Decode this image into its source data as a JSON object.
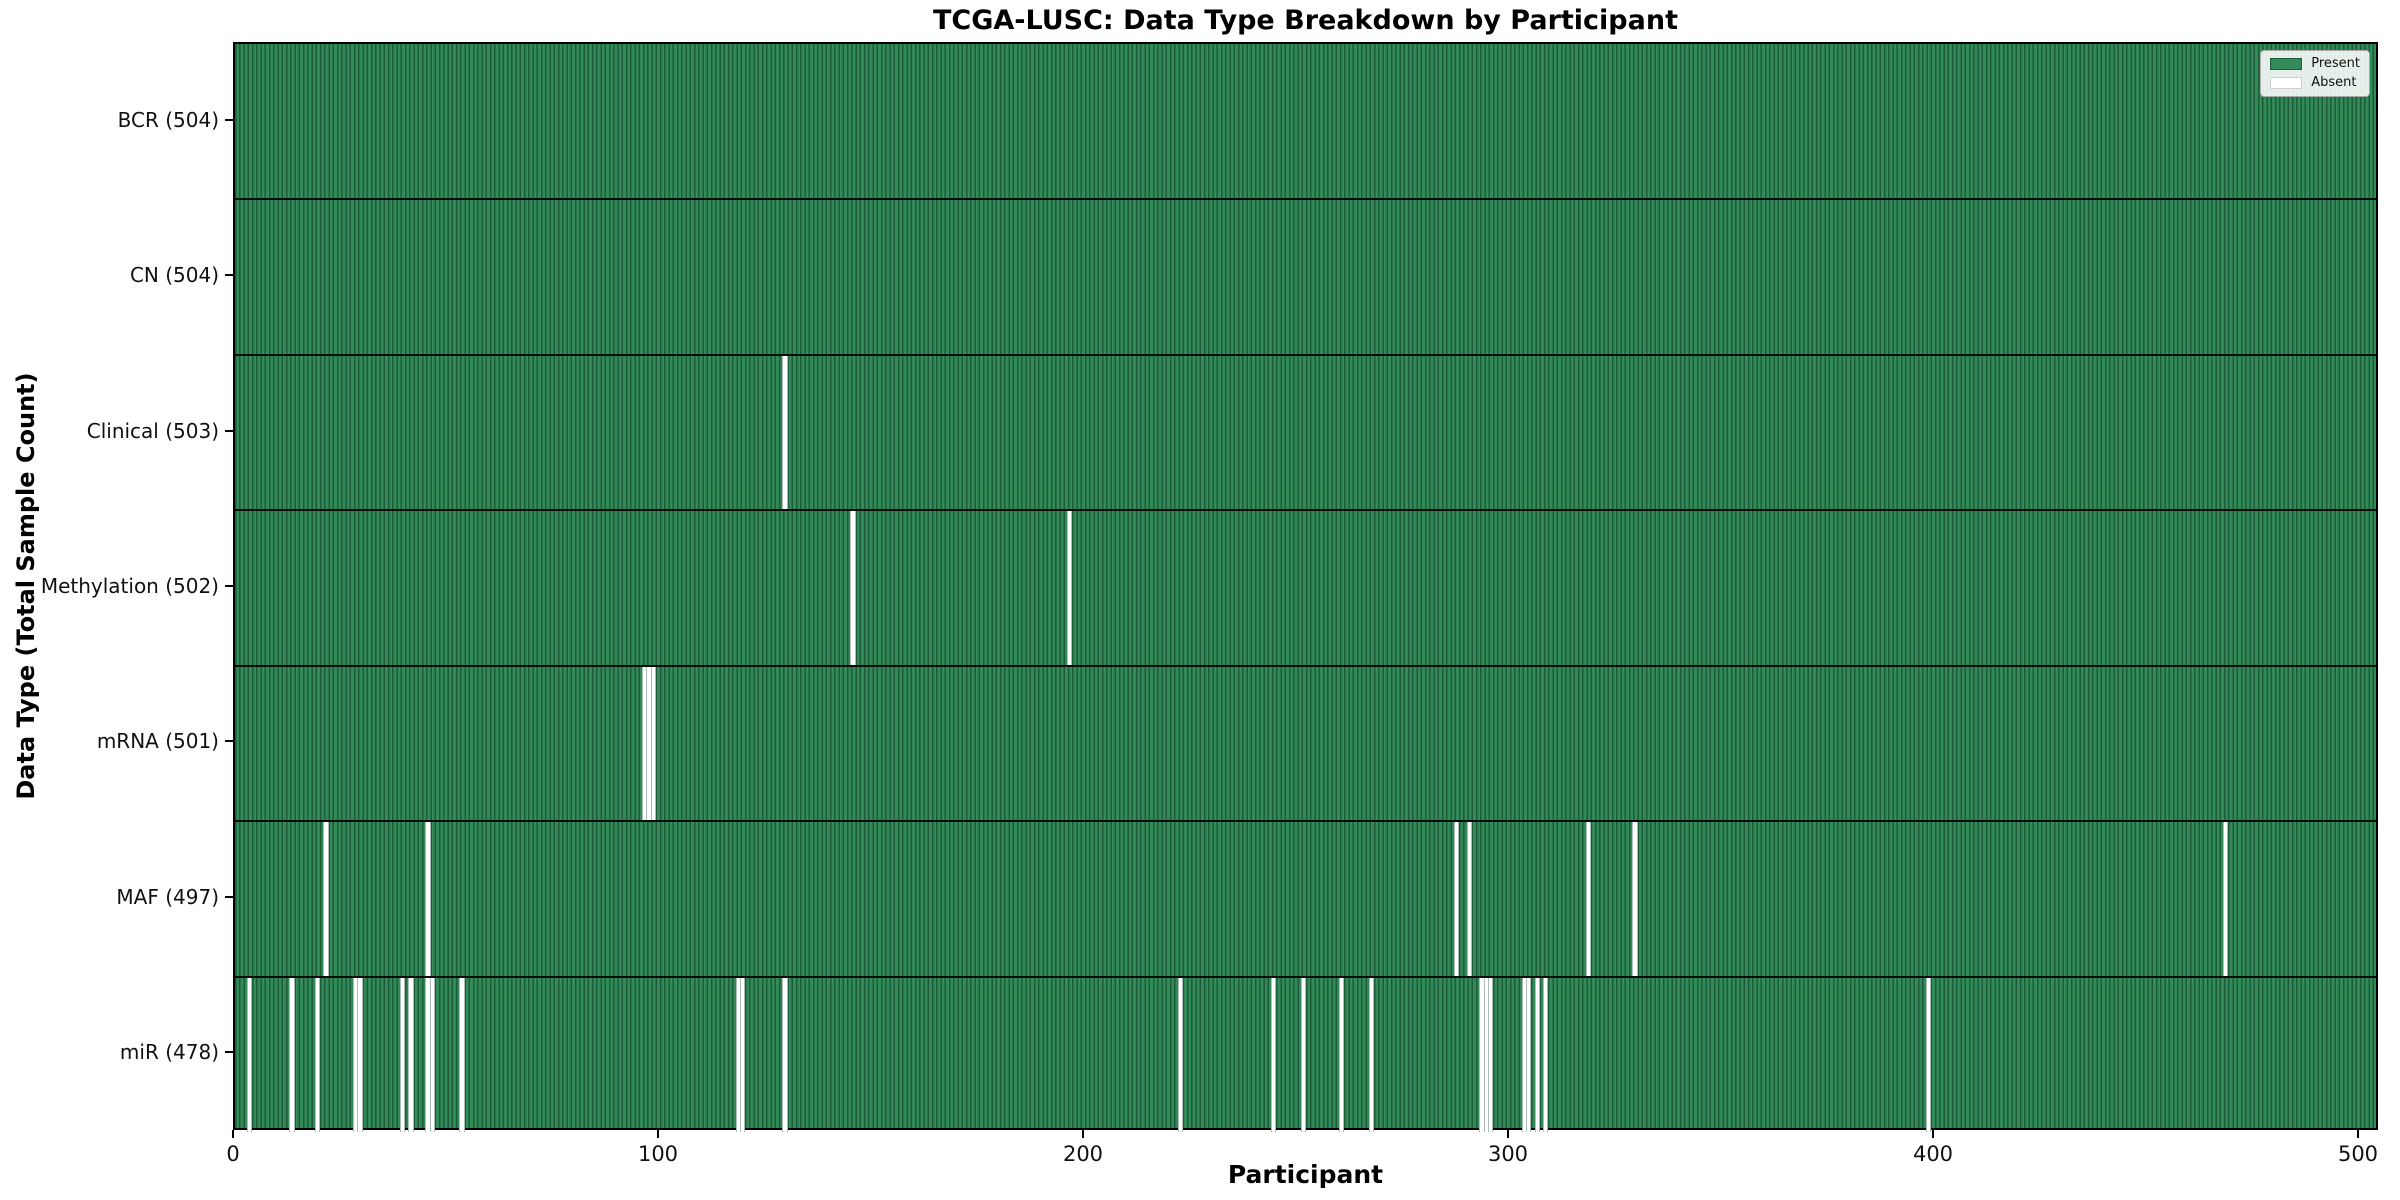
{
  "chart_data": {
    "type": "heatmap",
    "title": "TCGA-LUSC: Data Type Breakdown by Participant",
    "xlabel": "Participant",
    "ylabel": "Data Type (Total Sample Count)",
    "legend": {
      "present": "Present",
      "absent": "Absent"
    },
    "colors": {
      "present": "#318a58",
      "present_edge": "#1d5c39",
      "absent": "#ffffff"
    },
    "n_participants": 504,
    "x_ticks": [
      0,
      100,
      200,
      300,
      400,
      500
    ],
    "x_range": [
      0,
      504
    ],
    "grid": false,
    "legend_position": "upper right",
    "rows": [
      {
        "key": "bcr",
        "label": "BCR (504)",
        "total": 504,
        "absent": []
      },
      {
        "key": "cn",
        "label": "CN (504)",
        "total": 504,
        "absent": []
      },
      {
        "key": "clinical",
        "label": "Clinical (503)",
        "total": 503,
        "absent": [
          129
        ]
      },
      {
        "key": "methylation",
        "label": "Methylation (502)",
        "total": 502,
        "absent": [
          145,
          196
        ]
      },
      {
        "key": "mrna",
        "label": "mRNA (501)",
        "total": 501,
        "absent": [
          96,
          97,
          98
        ]
      },
      {
        "key": "maf",
        "label": "MAF (497)",
        "total": 497,
        "absent": [
          21,
          45,
          287,
          290,
          318,
          329,
          468
        ]
      },
      {
        "key": "mir",
        "label": "miR (478)",
        "total": 478,
        "absent": [
          3,
          13,
          19,
          28,
          29,
          39,
          41,
          45,
          46,
          53,
          118,
          119,
          129,
          222,
          244,
          251,
          260,
          267,
          293,
          294,
          295,
          303,
          304,
          306,
          308,
          398
        ]
      }
    ]
  }
}
